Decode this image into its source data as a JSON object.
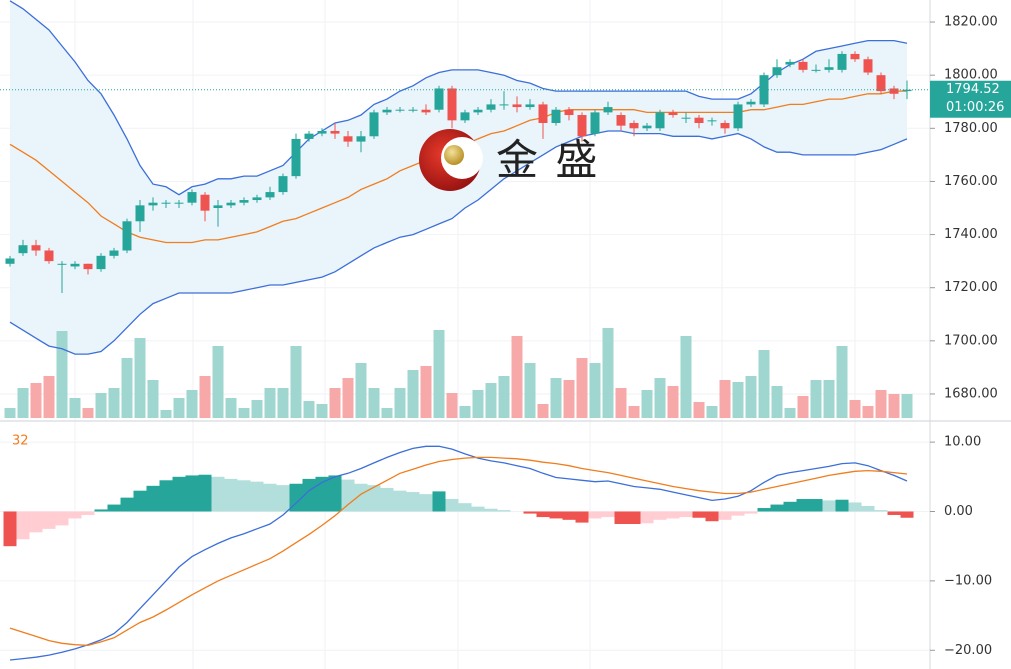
{
  "chart_data": [
    {
      "type": "candlestick",
      "up_color": "#26a69a",
      "down_color": "#ef5350",
      "open": [
        1729,
        1733,
        1736,
        1734,
        1729,
        1728,
        1729,
        1727,
        1732,
        1734,
        1745,
        1751,
        1752,
        1752,
        1752,
        1755,
        1750,
        1751,
        1752,
        1753,
        1754,
        1756,
        1762,
        1776,
        1778,
        1779,
        1777,
        1775,
        1777,
        1786,
        1787,
        1787,
        1787,
        1787,
        1795,
        1783,
        1786,
        1787,
        1789,
        1789,
        1788,
        1789,
        1782,
        1787,
        1785,
        1778,
        1786,
        1785,
        1782,
        1780,
        1780,
        1786,
        1784,
        1784,
        1783,
        1782,
        1780,
        1789,
        1789,
        1800,
        1804,
        1805,
        1802,
        1802,
        1802,
        1808,
        1806,
        1800,
        1795,
        1794
      ],
      "high": [
        1732,
        1738,
        1738,
        1735,
        1730,
        1730,
        1729,
        1733,
        1735,
        1746,
        1753,
        1754,
        1753,
        1753,
        1757,
        1756,
        1753,
        1753,
        1754,
        1755,
        1758,
        1763,
        1778,
        1779,
        1780,
        1782,
        1779,
        1779,
        1787,
        1788,
        1788,
        1788,
        1789,
        1796,
        1796,
        1787,
        1788,
        1791,
        1794,
        1792,
        1791,
        1790,
        1788,
        1788,
        1786,
        1787,
        1790,
        1786,
        1783,
        1782,
        1787,
        1787,
        1786,
        1785,
        1784,
        1783,
        1790,
        1791,
        1801,
        1806,
        1806,
        1806,
        1804,
        1806,
        1809,
        1809,
        1807,
        1801,
        1796,
        1798
      ],
      "low": [
        1728,
        1732,
        1732,
        1729,
        1718,
        1727,
        1725,
        1726,
        1731,
        1733,
        1741,
        1749,
        1750,
        1750,
        1751,
        1745,
        1743,
        1750,
        1751,
        1752,
        1753,
        1755,
        1761,
        1775,
        1777,
        1776,
        1773,
        1771,
        1776,
        1785,
        1786,
        1786,
        1785,
        1786,
        1780,
        1782,
        1785,
        1786,
        1787,
        1786,
        1787,
        1776,
        1781,
        1783,
        1775,
        1777,
        1785,
        1779,
        1777,
        1779,
        1779,
        1784,
        1782,
        1780,
        1781,
        1778,
        1779,
        1788,
        1788,
        1799,
        1803,
        1801,
        1801,
        1801,
        1801,
        1805,
        1800,
        1793,
        1791,
        1791
      ],
      "close": [
        1731,
        1736,
        1734,
        1730,
        1729,
        1729,
        1727,
        1732,
        1734,
        1745,
        1751,
        1752,
        1752,
        1752,
        1756,
        1749,
        1751,
        1752,
        1753,
        1754,
        1756,
        1762,
        1776,
        1778,
        1779,
        1778,
        1775,
        1777,
        1786,
        1787,
        1787,
        1787,
        1786,
        1795,
        1783,
        1786,
        1787,
        1789,
        1789,
        1788,
        1789,
        1782,
        1787,
        1785,
        1777,
        1786,
        1788,
        1781,
        1780,
        1781,
        1786,
        1785,
        1784,
        1782,
        1783,
        1780,
        1789,
        1790,
        1800,
        1803,
        1805,
        1802,
        1802,
        1803,
        1808,
        1806,
        1801,
        1794,
        1793,
        1794.52
      ],
      "bollinger": {
        "upper_color": "#3b6fd9",
        "middle_color": "#f07d1e",
        "fill": "#eaf4fb",
        "upper": [
          1828,
          1825,
          1821,
          1817,
          1811,
          1805,
          1798,
          1793,
          1785,
          1776,
          1766,
          1759,
          1758,
          1755,
          1758,
          1759,
          1761,
          1761,
          1762,
          1762,
          1764,
          1766,
          1771,
          1776,
          1779,
          1782,
          1783,
          1785,
          1789,
          1791,
          1794,
          1796,
          1799,
          1801,
          1802,
          1802,
          1802,
          1801,
          1800,
          1798,
          1797,
          1795,
          1794,
          1794,
          1794,
          1794,
          1794,
          1794,
          1794,
          1794,
          1794,
          1794,
          1794,
          1792,
          1791,
          1791,
          1791,
          1793,
          1797,
          1801,
          1804,
          1806,
          1809,
          1810,
          1811,
          1812,
          1813,
          1813,
          1813,
          1812
        ],
        "middle": [
          1774,
          1771,
          1768,
          1764,
          1760,
          1756,
          1752,
          1747,
          1744,
          1741,
          1739,
          1738,
          1737,
          1737,
          1737,
          1738,
          1738,
          1739,
          1740,
          1741,
          1743,
          1745,
          1746,
          1748,
          1750,
          1752,
          1754,
          1757,
          1759,
          1761,
          1764,
          1766,
          1768,
          1770,
          1772,
          1774,
          1776,
          1778,
          1779,
          1781,
          1783,
          1784,
          1786,
          1787,
          1787,
          1787,
          1787,
          1787,
          1787,
          1786,
          1786,
          1786,
          1786,
          1786,
          1786,
          1786,
          1786,
          1787,
          1787,
          1788,
          1789,
          1789,
          1790,
          1791,
          1791,
          1792,
          1793,
          1793,
          1794,
          1794
        ],
        "lower": [
          1707,
          1704,
          1701,
          1698,
          1697,
          1695,
          1695,
          1696,
          1700,
          1705,
          1710,
          1714,
          1716,
          1718,
          1718,
          1718,
          1718,
          1718,
          1719,
          1720,
          1721,
          1721,
          1722,
          1723,
          1724,
          1726,
          1729,
          1732,
          1735,
          1737,
          1739,
          1740,
          1742,
          1744,
          1746,
          1750,
          1753,
          1757,
          1761,
          1764,
          1767,
          1770,
          1773,
          1775,
          1777,
          1778,
          1779,
          1779,
          1778,
          1778,
          1778,
          1777,
          1777,
          1777,
          1776,
          1777,
          1778,
          1776,
          1773,
          1771,
          1771,
          1770,
          1770,
          1770,
          1770,
          1770,
          1771,
          1772,
          1774,
          1776
        ]
      },
      "volume": [
        10,
        30,
        35,
        42,
        87,
        20,
        10,
        25,
        30,
        60,
        80,
        38,
        8,
        20,
        28,
        42,
        72,
        20,
        10,
        18,
        30,
        30,
        72,
        17,
        14,
        30,
        40,
        55,
        30,
        10,
        30,
        48,
        52,
        88,
        25,
        12,
        28,
        35,
        42,
        82,
        55,
        14,
        40,
        38,
        60,
        55,
        90,
        30,
        12,
        28,
        40,
        32,
        82,
        16,
        12,
        38,
        36,
        42,
        68,
        32,
        10,
        22,
        38,
        38,
        72,
        18,
        12,
        28,
        24,
        24
      ],
      "volume_up_color": "#9fd6cf",
      "volume_down_color": "#f7a9a9",
      "last_price": 1794.52,
      "countdown": "01:00:26",
      "watermark": "金 盛",
      "ylim": [
        1670.2,
        1828.3
      ],
      "yticks": [
        {
          "value": 1820,
          "label": "1820.00"
        },
        {
          "value": 1800,
          "label": "1800.00"
        },
        {
          "value": 1780,
          "label": "1780.00"
        },
        {
          "value": 1760,
          "label": "1760.00"
        },
        {
          "value": 1740,
          "label": "1740.00"
        },
        {
          "value": 1720,
          "label": "1720.00"
        },
        {
          "value": 1700,
          "label": "1700.00"
        },
        {
          "value": 1680,
          "label": "1680.00"
        }
      ],
      "grid": true
    },
    {
      "type": "macd",
      "legend": "32",
      "histogram": [
        -5,
        -4,
        -3,
        -2.5,
        -2,
        -1,
        -0.5,
        0.3,
        1,
        2,
        3,
        3.7,
        4.5,
        5,
        5.2,
        5.3,
        5,
        4.7,
        4.5,
        4.3,
        4,
        3.8,
        4,
        4.7,
        5,
        5.2,
        4.6,
        4,
        3.8,
        3.4,
        3,
        2.8,
        2.5,
        2.9,
        1.8,
        1.2,
        0.7,
        0.4,
        0.2,
        0,
        -0.3,
        -0.8,
        -1,
        -1.2,
        -1.6,
        -1,
        -0.8,
        -1.8,
        -1.8,
        -1.7,
        -1.2,
        -1,
        -0.8,
        -0.9,
        -1.4,
        -1.2,
        -0.6,
        -0.3,
        0.5,
        1,
        1.4,
        1.8,
        1.8,
        1.6,
        1.7,
        1.3,
        0.8,
        0.2,
        -0.5,
        -0.9
      ],
      "dif": [
        -21.4,
        -21.2,
        -21,
        -20.7,
        -20.3,
        -19.8,
        -19.2,
        -18.5,
        -17.6,
        -16,
        -14,
        -12,
        -10,
        -8,
        -6.5,
        -5.5,
        -4.6,
        -3.8,
        -3.2,
        -2.5,
        -1.8,
        -0.5,
        1.2,
        3,
        4.2,
        5,
        5.5,
        6.2,
        7,
        7.8,
        8.5,
        9.1,
        9.4,
        9.4,
        9,
        8.3,
        7.7,
        7.3,
        7,
        6.6,
        6.2,
        5.5,
        4.9,
        4.7,
        4.5,
        4.3,
        4.4,
        4,
        3.6,
        3.4,
        3.2,
        2.8,
        2.4,
        2,
        1.6,
        1.8,
        2.2,
        3,
        4.2,
        5.2,
        5.6,
        5.9,
        6.2,
        6.5,
        6.9,
        7,
        6.6,
        5.9,
        5.2,
        4.4
      ],
      "dea": [
        -16.8,
        -17.4,
        -18,
        -18.6,
        -19,
        -19.2,
        -19.3,
        -18.8,
        -18.2,
        -17.1,
        -16,
        -15.2,
        -14.2,
        -13.1,
        -12,
        -11,
        -10,
        -9.2,
        -8.4,
        -7.6,
        -6.8,
        -5.7,
        -4.5,
        -3.3,
        -2,
        -0.6,
        1,
        2.5,
        3.5,
        4.5,
        5.5,
        6.1,
        6.7,
        7.2,
        7.5,
        7.7,
        7.8,
        7.8,
        7.7,
        7.6,
        7.4,
        7.1,
        6.9,
        6.6,
        6.2,
        5.9,
        5.6,
        5.2,
        4.8,
        4.4,
        4,
        3.6,
        3.3,
        3,
        2.8,
        2.6,
        2.6,
        2.8,
        3.2,
        3.6,
        4,
        4.4,
        4.8,
        5.2,
        5.5,
        5.8,
        5.9,
        5.8,
        5.6,
        5.4
      ],
      "dif_color": "#3b6fd9",
      "dea_color": "#f07d1e",
      "hist_colors": [
        "#26a69a",
        "#b2dfdb",
        "#ef5350",
        "#ffcdd2"
      ],
      "ylim": [
        -22.7,
        12.9
      ],
      "yticks": [
        {
          "value": 10,
          "label": "10.00"
        },
        {
          "value": 0,
          "label": "0.00"
        },
        {
          "value": -10,
          "label": "−10.00"
        },
        {
          "value": -20,
          "label": "−20.00"
        }
      ],
      "grid": true
    }
  ]
}
